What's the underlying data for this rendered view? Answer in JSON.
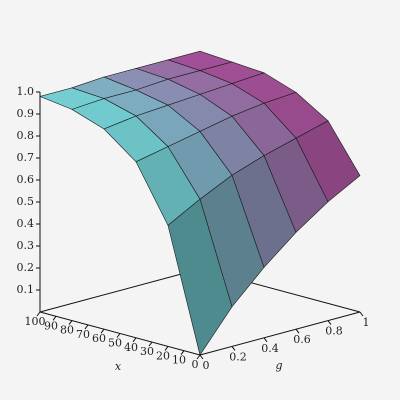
{
  "chart_data": {
    "type": "surface",
    "x_label": "x",
    "y_label": "g",
    "x": [
      0,
      20,
      40,
      60,
      80,
      100
    ],
    "y": [
      0,
      0.2,
      0.4,
      0.6,
      0.8,
      1
    ],
    "z": [
      [
        0,
        0.18,
        0.32,
        0.44,
        0.54,
        0.62
      ],
      [
        0.55,
        0.63,
        0.7,
        0.75,
        0.79,
        0.83
      ],
      [
        0.8,
        0.83,
        0.86,
        0.89,
        0.91,
        0.92
      ],
      [
        0.91,
        0.93,
        0.94,
        0.95,
        0.96,
        0.97
      ],
      [
        0.96,
        0.97,
        0.97,
        0.98,
        0.98,
        0.98
      ],
      [
        0.98,
        0.98,
        0.99,
        0.99,
        0.99,
        0.99
      ]
    ],
    "xlim": [
      0,
      100
    ],
    "ylim": [
      0,
      1
    ],
    "zlim": [
      0,
      1
    ],
    "xticks": [
      0,
      10,
      20,
      30,
      40,
      50,
      60,
      70,
      80,
      90,
      100
    ],
    "yticks": [
      0,
      0.2,
      0.4,
      0.6,
      0.8,
      1
    ],
    "zticks": [
      0.1,
      0.2,
      0.3,
      0.4,
      0.5,
      0.6,
      0.7,
      0.8,
      0.9,
      {
        "value": 1,
        "label": "1.0"
      }
    ],
    "colormap": [
      "#6fe0dc",
      "#a8408f"
    ]
  }
}
